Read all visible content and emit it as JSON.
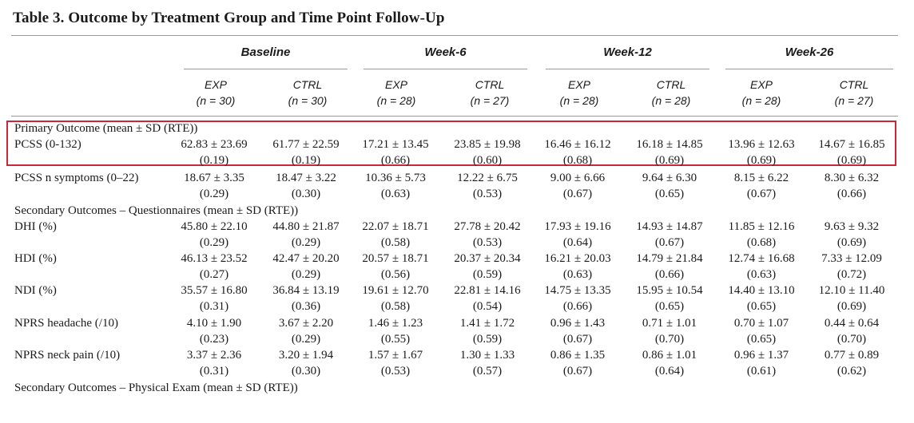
{
  "title": "Table 3.  Outcome by Treatment Group and Time Point Follow-Up",
  "groups": [
    "Baseline",
    "Week-6",
    "Week-12",
    "Week-26"
  ],
  "subheaders": [
    {
      "arm": "EXP",
      "n": "(n = 30)"
    },
    {
      "arm": "CTRL",
      "n": "(n = 30)"
    },
    {
      "arm": "EXP",
      "n": "(n = 28)"
    },
    {
      "arm": "CTRL",
      "n": "(n = 27)"
    },
    {
      "arm": "EXP",
      "n": "(n = 28)"
    },
    {
      "arm": "CTRL",
      "n": "(n = 28)"
    },
    {
      "arm": "EXP",
      "n": "(n = 28)"
    },
    {
      "arm": "CTRL",
      "n": "(n = 27)"
    }
  ],
  "sections": {
    "primary": "Primary Outcome (mean ± SD (RTE))",
    "secondary_q": "Secondary Outcomes – Questionnaires (mean ± SD (RTE))",
    "secondary_pe": "Secondary Outcomes – Physical Exam (mean ± SD (RTE))"
  },
  "rows": [
    {
      "label": "PCSS (0-132)",
      "values": [
        "62.83 ± 23.69",
        "61.77 ± 22.59",
        "17.21 ± 13.45",
        "23.85 ± 19.98",
        "16.46 ± 16.12",
        "16.18 ± 14.85",
        "13.96 ± 12.63",
        "14.67 ± 16.85"
      ],
      "rte": [
        "(0.19)",
        "(0.19)",
        "(0.66)",
        "(0.60)",
        "(0.68)",
        "(0.69)",
        "(0.69)",
        "(0.69)"
      ]
    },
    {
      "label": "PCSS n symptoms (0–22)",
      "values": [
        "18.67 ± 3.35",
        "18.47 ± 3.22",
        "10.36 ± 5.73",
        "12.22 ± 6.75",
        "9.00 ± 6.66",
        "9.64 ± 6.30",
        "8.15 ± 6.22",
        "8.30 ± 6.32"
      ],
      "rte": [
        "(0.29)",
        "(0.30)",
        "(0.63)",
        "(0.53)",
        "(0.67)",
        "(0.65)",
        "(0.67)",
        "(0.66)"
      ]
    },
    {
      "label": "DHI (%)",
      "values": [
        "45.80 ± 22.10",
        "44.80 ± 21.87",
        "22.07 ± 18.71",
        "27.78 ± 20.42",
        "17.93 ± 19.16",
        "14.93 ± 14.87",
        "11.85 ± 12.16",
        "9.63 ± 9.32"
      ],
      "rte": [
        "(0.29)",
        "(0.29)",
        "(0.58)",
        "(0.53)",
        "(0.64)",
        "(0.67)",
        "(0.68)",
        "(0.69)"
      ]
    },
    {
      "label": "HDI (%)",
      "values": [
        "46.13 ± 23.52",
        "42.47 ± 20.20",
        "20.57 ± 18.71",
        "20.37 ± 20.34",
        "16.21 ± 20.03",
        "14.79 ± 21.84",
        "12.74 ± 16.68",
        "7.33 ± 12.09"
      ],
      "rte": [
        "(0.27)",
        "(0.29)",
        "(0.56)",
        "(0.59)",
        "(0.63)",
        "(0.66)",
        "(0.63)",
        "(0.72)"
      ]
    },
    {
      "label": "NDI (%)",
      "values": [
        "35.57 ± 16.80",
        "36.84 ± 13.19",
        "19.61 ± 12.70",
        "22.81 ± 14.16",
        "14.75 ± 13.35",
        "15.95 ± 10.54",
        "14.40 ± 13.10",
        "12.10 ± 11.40"
      ],
      "rte": [
        "(0.31)",
        "(0.36)",
        "(0.58)",
        "(0.54)",
        "(0.66)",
        "(0.65)",
        "(0.65)",
        "(0.69)"
      ]
    },
    {
      "label": "NPRS headache (/10)",
      "values": [
        "4.10 ± 1.90",
        "3.67 ± 2.20",
        "1.46 ± 1.23",
        "1.41 ± 1.72",
        "0.96 ± 1.43",
        "0.71 ± 1.01",
        "0.70 ± 1.07",
        "0.44 ± 0.64"
      ],
      "rte": [
        "(0.23)",
        "(0.29)",
        "(0.55)",
        "(0.59)",
        "(0.67)",
        "(0.70)",
        "(0.65)",
        "(0.70)"
      ]
    },
    {
      "label": "NPRS neck pain (/10)",
      "values": [
        "3.37 ± 2.36",
        "3.20 ± 1.94",
        "1.57 ± 1.67",
        "1.30 ± 1.33",
        "0.86 ± 1.35",
        "0.86 ± 1.01",
        "0.96 ± 1.37",
        "0.77 ± 0.89"
      ],
      "rte": [
        "(0.31)",
        "(0.30)",
        "(0.53)",
        "(0.57)",
        "(0.67)",
        "(0.64)",
        "(0.61)",
        "(0.62)"
      ]
    }
  ]
}
